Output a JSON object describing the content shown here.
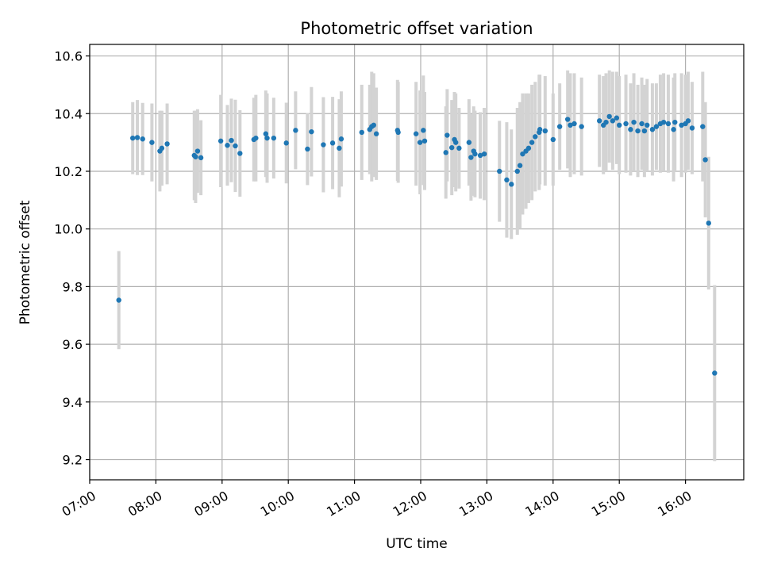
{
  "chart_data": {
    "type": "scatter",
    "title": "Photometric offset variation",
    "xlabel": "UTC time",
    "ylabel": "Photometric offset",
    "grid": true,
    "xlim": [
      7.0,
      16.88
    ],
    "ylim": [
      9.13,
      10.64
    ],
    "x_ticks": [
      7,
      8,
      9,
      10,
      11,
      12,
      13,
      14,
      15,
      16
    ],
    "x_tick_labels": [
      "07:00",
      "08:00",
      "09:00",
      "10:00",
      "11:00",
      "12:00",
      "13:00",
      "14:00",
      "15:00",
      "16:00"
    ],
    "y_ticks": [
      9.2,
      9.4,
      9.6,
      9.8,
      10.0,
      10.2,
      10.4,
      10.6
    ],
    "y_tick_labels": [
      "9.2",
      "9.4",
      "9.6",
      "9.8",
      "10.0",
      "10.2",
      "10.4",
      "10.6"
    ],
    "colors": {
      "point": "#1f77b4",
      "errorbar": "#d3d3d3",
      "grid": "#b0b0b0"
    },
    "series": [
      {
        "name": "offset",
        "points": [
          [
            7.44,
            9.753,
            0.17
          ],
          [
            7.65,
            10.315,
            0.125
          ],
          [
            7.72,
            10.317,
            0.13
          ],
          [
            7.8,
            10.312,
            0.125
          ],
          [
            7.94,
            10.3,
            0.135
          ],
          [
            8.06,
            10.27,
            0.14
          ],
          [
            8.09,
            10.28,
            0.13
          ],
          [
            8.17,
            10.295,
            0.14
          ],
          [
            8.58,
            10.255,
            0.155
          ],
          [
            8.6,
            10.25,
            0.16
          ],
          [
            8.63,
            10.27,
            0.145
          ],
          [
            8.68,
            10.247,
            0.13
          ],
          [
            8.98,
            10.305,
            0.16
          ],
          [
            9.08,
            10.29,
            0.14
          ],
          [
            9.14,
            10.307,
            0.145
          ],
          [
            9.2,
            10.288,
            0.16
          ],
          [
            9.27,
            10.262,
            0.15
          ],
          [
            9.48,
            10.31,
            0.145
          ],
          [
            9.51,
            10.315,
            0.15
          ],
          [
            9.66,
            10.33,
            0.15
          ],
          [
            9.68,
            10.315,
            0.155
          ],
          [
            9.78,
            10.315,
            0.14
          ],
          [
            9.97,
            10.298,
            0.14
          ],
          [
            10.11,
            10.342,
            0.135
          ],
          [
            10.29,
            10.277,
            0.125
          ],
          [
            10.35,
            10.337,
            0.155
          ],
          [
            10.53,
            10.292,
            0.165
          ],
          [
            10.67,
            10.298,
            0.16
          ],
          [
            10.77,
            10.28,
            0.17
          ],
          [
            10.8,
            10.312,
            0.165
          ],
          [
            11.11,
            10.335,
            0.165
          ],
          [
            11.23,
            10.345,
            0.155
          ],
          [
            11.26,
            10.355,
            0.19
          ],
          [
            11.29,
            10.36,
            0.18
          ],
          [
            11.33,
            10.33,
            0.16
          ],
          [
            11.65,
            10.342,
            0.175
          ],
          [
            11.66,
            10.335,
            0.175
          ],
          [
            11.93,
            10.33,
            0.18
          ],
          [
            11.99,
            10.3,
            0.18
          ],
          [
            12.04,
            10.342,
            0.19
          ],
          [
            12.06,
            10.305,
            0.17
          ],
          [
            12.38,
            10.265,
            0.16
          ],
          [
            12.4,
            10.325,
            0.16
          ],
          [
            12.47,
            10.282,
            0.165
          ],
          [
            12.51,
            10.31,
            0.165
          ],
          [
            12.53,
            10.3,
            0.17
          ],
          [
            12.58,
            10.28,
            0.14
          ],
          [
            12.73,
            10.3,
            0.15
          ],
          [
            12.76,
            10.248,
            0.15
          ],
          [
            12.8,
            10.27,
            0.155
          ],
          [
            12.82,
            10.26,
            0.15
          ],
          [
            12.9,
            10.255,
            0.15
          ],
          [
            12.96,
            10.26,
            0.16
          ],
          [
            13.19,
            10.2,
            0.175
          ],
          [
            13.3,
            10.17,
            0.2
          ],
          [
            13.37,
            10.155,
            0.19
          ],
          [
            13.46,
            10.2,
            0.22
          ],
          [
            13.5,
            10.22,
            0.22
          ],
          [
            13.54,
            10.26,
            0.21
          ],
          [
            13.59,
            10.27,
            0.2
          ],
          [
            13.63,
            10.28,
            0.19
          ],
          [
            13.68,
            10.3,
            0.2
          ],
          [
            13.73,
            10.32,
            0.19
          ],
          [
            13.79,
            10.335,
            0.2
          ],
          [
            13.8,
            10.345,
            0.19
          ],
          [
            13.88,
            10.34,
            0.19
          ],
          [
            14.0,
            10.31,
            0.16
          ],
          [
            14.1,
            10.355,
            0.15
          ],
          [
            14.22,
            10.38,
            0.17
          ],
          [
            14.26,
            10.36,
            0.18
          ],
          [
            14.32,
            10.365,
            0.175
          ],
          [
            14.43,
            10.355,
            0.17
          ],
          [
            14.7,
            10.375,
            0.16
          ],
          [
            14.76,
            10.36,
            0.17
          ],
          [
            14.8,
            10.37,
            0.17
          ],
          [
            14.85,
            10.39,
            0.16
          ],
          [
            14.9,
            10.375,
            0.17
          ],
          [
            14.96,
            10.385,
            0.16
          ],
          [
            15.0,
            10.36,
            0.17
          ],
          [
            15.1,
            10.365,
            0.17
          ],
          [
            15.17,
            10.345,
            0.16
          ],
          [
            15.22,
            10.37,
            0.17
          ],
          [
            15.28,
            10.34,
            0.16
          ],
          [
            15.34,
            10.365,
            0.16
          ],
          [
            15.38,
            10.34,
            0.16
          ],
          [
            15.42,
            10.36,
            0.16
          ],
          [
            15.5,
            10.345,
            0.16
          ],
          [
            15.56,
            10.355,
            0.15
          ],
          [
            15.62,
            10.365,
            0.17
          ],
          [
            15.67,
            10.37,
            0.17
          ],
          [
            15.74,
            10.365,
            0.17
          ],
          [
            15.82,
            10.345,
            0.18
          ],
          [
            15.84,
            10.37,
            0.17
          ],
          [
            15.94,
            10.36,
            0.18
          ],
          [
            16.0,
            10.365,
            0.17
          ],
          [
            16.04,
            10.375,
            0.17
          ],
          [
            16.1,
            10.35,
            0.16
          ],
          [
            16.26,
            10.355,
            0.19
          ],
          [
            16.3,
            10.24,
            0.2
          ],
          [
            16.35,
            10.02,
            0.23
          ],
          [
            16.44,
            9.5,
            0.305
          ]
        ]
      }
    ]
  }
}
